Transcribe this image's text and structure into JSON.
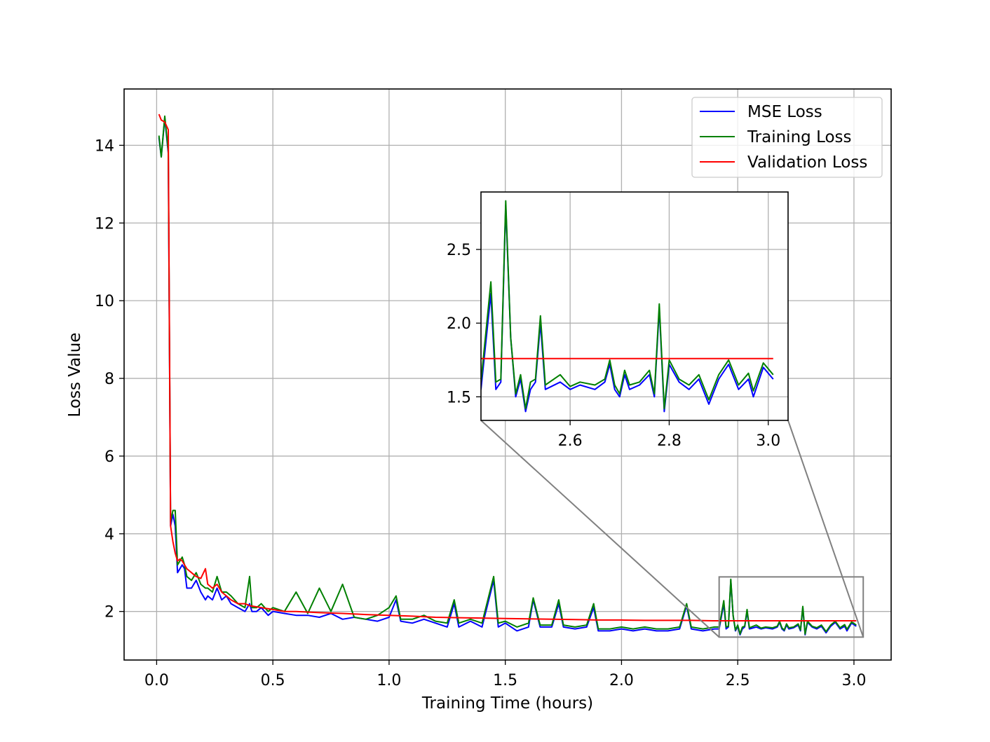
{
  "chart_data": {
    "type": "line",
    "title": "",
    "xlabel": "Training Time (hours)",
    "ylabel": "Loss Value",
    "xlim": [
      -0.14,
      3.16
    ],
    "ylim": [
      0.75,
      15.45
    ],
    "xticks": [
      "0.0",
      "0.5",
      "1.0",
      "1.5",
      "2.0",
      "2.5",
      "3.0"
    ],
    "xtick_values": [
      0,
      0.5,
      1.0,
      1.5,
      2.0,
      2.5,
      3.0
    ],
    "yticks": [
      "2",
      "4",
      "6",
      "8",
      "10",
      "12",
      "14"
    ],
    "ytick_values": [
      2,
      4,
      6,
      8,
      10,
      12,
      14
    ],
    "grid": true,
    "legend_position": "top-right",
    "series": [
      {
        "name": "MSE Loss",
        "color": "#0000ff",
        "x": [
          0.01,
          0.02,
          0.035,
          0.05,
          0.06,
          0.07,
          0.08,
          0.09,
          0.1,
          0.11,
          0.12,
          0.13,
          0.15,
          0.17,
          0.19,
          0.21,
          0.22,
          0.24,
          0.26,
          0.28,
          0.3,
          0.32,
          0.35,
          0.38,
          0.4,
          0.41,
          0.43,
          0.45,
          0.48,
          0.5,
          0.55,
          0.6,
          0.65,
          0.7,
          0.75,
          0.8,
          0.85,
          0.9,
          0.95,
          1.0,
          1.03,
          1.05,
          1.1,
          1.15,
          1.2,
          1.25,
          1.28,
          1.3,
          1.35,
          1.4,
          1.45,
          1.47,
          1.5,
          1.55,
          1.6,
          1.62,
          1.65,
          1.7,
          1.73,
          1.75,
          1.8,
          1.85,
          1.88,
          1.9,
          1.95,
          2.0,
          2.05,
          2.1,
          2.15,
          2.2,
          2.25,
          2.28,
          2.3,
          2.35,
          2.4,
          2.42,
          2.44,
          2.45,
          2.46,
          2.47,
          2.48,
          2.49,
          2.5,
          2.51,
          2.52,
          2.53,
          2.54,
          2.55,
          2.58,
          2.6,
          2.62,
          2.65,
          2.67,
          2.68,
          2.69,
          2.7,
          2.71,
          2.72,
          2.74,
          2.76,
          2.77,
          2.78,
          2.79,
          2.8,
          2.82,
          2.84,
          2.86,
          2.88,
          2.9,
          2.92,
          2.94,
          2.96,
          2.97,
          2.99,
          3.01
        ],
        "y": [
          14.2,
          13.7,
          14.7,
          13.8,
          4.2,
          4.5,
          4.2,
          3.0,
          3.1,
          3.2,
          3.1,
          2.6,
          2.6,
          2.8,
          2.5,
          2.3,
          2.4,
          2.3,
          2.6,
          2.3,
          2.4,
          2.2,
          2.1,
          2.0,
          2.2,
          2.0,
          2.0,
          2.1,
          1.9,
          2.0,
          1.95,
          1.9,
          1.9,
          1.85,
          1.95,
          1.8,
          1.85,
          1.8,
          1.75,
          1.85,
          2.3,
          1.75,
          1.7,
          1.8,
          1.7,
          1.6,
          2.2,
          1.6,
          1.75,
          1.6,
          2.8,
          1.6,
          1.7,
          1.5,
          1.6,
          2.3,
          1.6,
          1.6,
          2.2,
          1.6,
          1.55,
          1.6,
          2.1,
          1.5,
          1.5,
          1.55,
          1.5,
          1.55,
          1.5,
          1.5,
          1.55,
          2.15,
          1.55,
          1.5,
          1.55,
          1.55,
          2.2,
          1.55,
          1.6,
          2.8,
          1.9,
          1.5,
          1.62,
          1.4,
          1.55,
          1.6,
          2.0,
          1.55,
          1.6,
          1.55,
          1.58,
          1.55,
          1.6,
          1.72,
          1.55,
          1.5,
          1.65,
          1.55,
          1.58,
          1.65,
          1.5,
          2.1,
          1.4,
          1.72,
          1.6,
          1.55,
          1.62,
          1.45,
          1.62,
          1.72,
          1.55,
          1.62,
          1.5,
          1.7,
          1.62
        ]
      },
      {
        "name": "Training Loss",
        "color": "#008000",
        "x": [
          0.01,
          0.02,
          0.035,
          0.05,
          0.06,
          0.07,
          0.08,
          0.09,
          0.1,
          0.11,
          0.12,
          0.13,
          0.15,
          0.17,
          0.19,
          0.21,
          0.22,
          0.24,
          0.26,
          0.28,
          0.3,
          0.32,
          0.35,
          0.38,
          0.4,
          0.41,
          0.43,
          0.45,
          0.48,
          0.5,
          0.55,
          0.6,
          0.65,
          0.7,
          0.75,
          0.8,
          0.85,
          0.9,
          0.95,
          1.0,
          1.03,
          1.05,
          1.1,
          1.15,
          1.2,
          1.25,
          1.28,
          1.3,
          1.35,
          1.4,
          1.45,
          1.47,
          1.5,
          1.55,
          1.6,
          1.62,
          1.65,
          1.7,
          1.73,
          1.75,
          1.8,
          1.85,
          1.88,
          1.9,
          1.95,
          2.0,
          2.05,
          2.1,
          2.15,
          2.2,
          2.25,
          2.28,
          2.3,
          2.35,
          2.4,
          2.42,
          2.44,
          2.45,
          2.46,
          2.47,
          2.48,
          2.49,
          2.5,
          2.51,
          2.52,
          2.53,
          2.54,
          2.55,
          2.58,
          2.6,
          2.62,
          2.65,
          2.67,
          2.68,
          2.69,
          2.7,
          2.71,
          2.72,
          2.74,
          2.76,
          2.77,
          2.78,
          2.79,
          2.8,
          2.82,
          2.84,
          2.86,
          2.88,
          2.9,
          2.92,
          2.94,
          2.96,
          2.97,
          2.99,
          3.01
        ],
        "y": [
          14.25,
          13.7,
          14.75,
          13.85,
          4.3,
          4.6,
          4.6,
          3.2,
          3.3,
          3.4,
          3.2,
          2.9,
          2.8,
          3.0,
          2.7,
          2.6,
          2.6,
          2.5,
          2.9,
          2.5,
          2.5,
          2.4,
          2.2,
          2.1,
          2.9,
          2.1,
          2.1,
          2.2,
          2.0,
          2.1,
          2.0,
          2.5,
          1.95,
          2.6,
          2.0,
          2.7,
          1.85,
          1.8,
          1.9,
          2.1,
          2.4,
          1.8,
          1.8,
          1.9,
          1.75,
          1.7,
          2.3,
          1.7,
          1.8,
          1.7,
          2.9,
          1.7,
          1.75,
          1.6,
          1.7,
          2.35,
          1.65,
          1.65,
          2.3,
          1.65,
          1.6,
          1.65,
          2.2,
          1.55,
          1.55,
          1.6,
          1.55,
          1.6,
          1.55,
          1.55,
          1.6,
          2.2,
          1.6,
          1.55,
          1.6,
          1.6,
          2.28,
          1.6,
          1.62,
          2.83,
          1.9,
          1.52,
          1.65,
          1.42,
          1.6,
          1.62,
          2.05,
          1.58,
          1.65,
          1.57,
          1.6,
          1.58,
          1.62,
          1.75,
          1.58,
          1.52,
          1.68,
          1.58,
          1.6,
          1.68,
          1.52,
          2.13,
          1.42,
          1.75,
          1.62,
          1.58,
          1.65,
          1.48,
          1.65,
          1.75,
          1.58,
          1.66,
          1.54,
          1.73,
          1.65
        ]
      },
      {
        "name": "Validation Loss",
        "color": "#ff0000",
        "x": [
          0.01,
          0.02,
          0.035,
          0.05,
          0.06,
          0.07,
          0.08,
          0.09,
          0.1,
          0.11,
          0.12,
          0.13,
          0.15,
          0.17,
          0.19,
          0.21,
          0.22,
          0.24,
          0.26,
          0.28,
          0.3,
          0.32,
          0.35,
          0.38,
          0.4,
          0.45,
          0.5,
          0.55,
          0.6,
          0.7,
          0.8,
          0.9,
          1.0,
          1.1,
          1.2,
          1.3,
          1.4,
          1.5,
          1.6,
          1.7,
          1.8,
          1.9,
          2.0,
          2.1,
          2.2,
          2.3,
          2.4,
          2.5,
          2.6,
          2.7,
          2.8,
          2.9,
          3.01
        ],
        "y": [
          14.8,
          14.65,
          14.6,
          14.4,
          4.2,
          3.8,
          3.5,
          3.3,
          3.35,
          3.3,
          3.2,
          3.1,
          3.0,
          2.9,
          2.85,
          3.1,
          2.7,
          2.6,
          2.7,
          2.5,
          2.4,
          2.3,
          2.2,
          2.2,
          2.15,
          2.1,
          2.05,
          2.0,
          2.0,
          1.97,
          1.95,
          1.92,
          1.9,
          1.88,
          1.85,
          1.84,
          1.83,
          1.82,
          1.81,
          1.8,
          1.79,
          1.78,
          1.78,
          1.77,
          1.77,
          1.77,
          1.76,
          1.76,
          1.76,
          1.76,
          1.76,
          1.76,
          1.76
        ]
      }
    ],
    "inset": {
      "xlim": [
        2.42,
        3.04
      ],
      "ylim": [
        1.34,
        2.89
      ],
      "xticks": [
        "2.6",
        "2.8",
        "3.0"
      ],
      "xtick_values": [
        2.6,
        2.8,
        3.0
      ],
      "yticks": [
        "1.5",
        "2.0",
        "2.5"
      ],
      "ytick_values": [
        1.5,
        2.0,
        2.5
      ],
      "connector_color": "#808080"
    }
  }
}
